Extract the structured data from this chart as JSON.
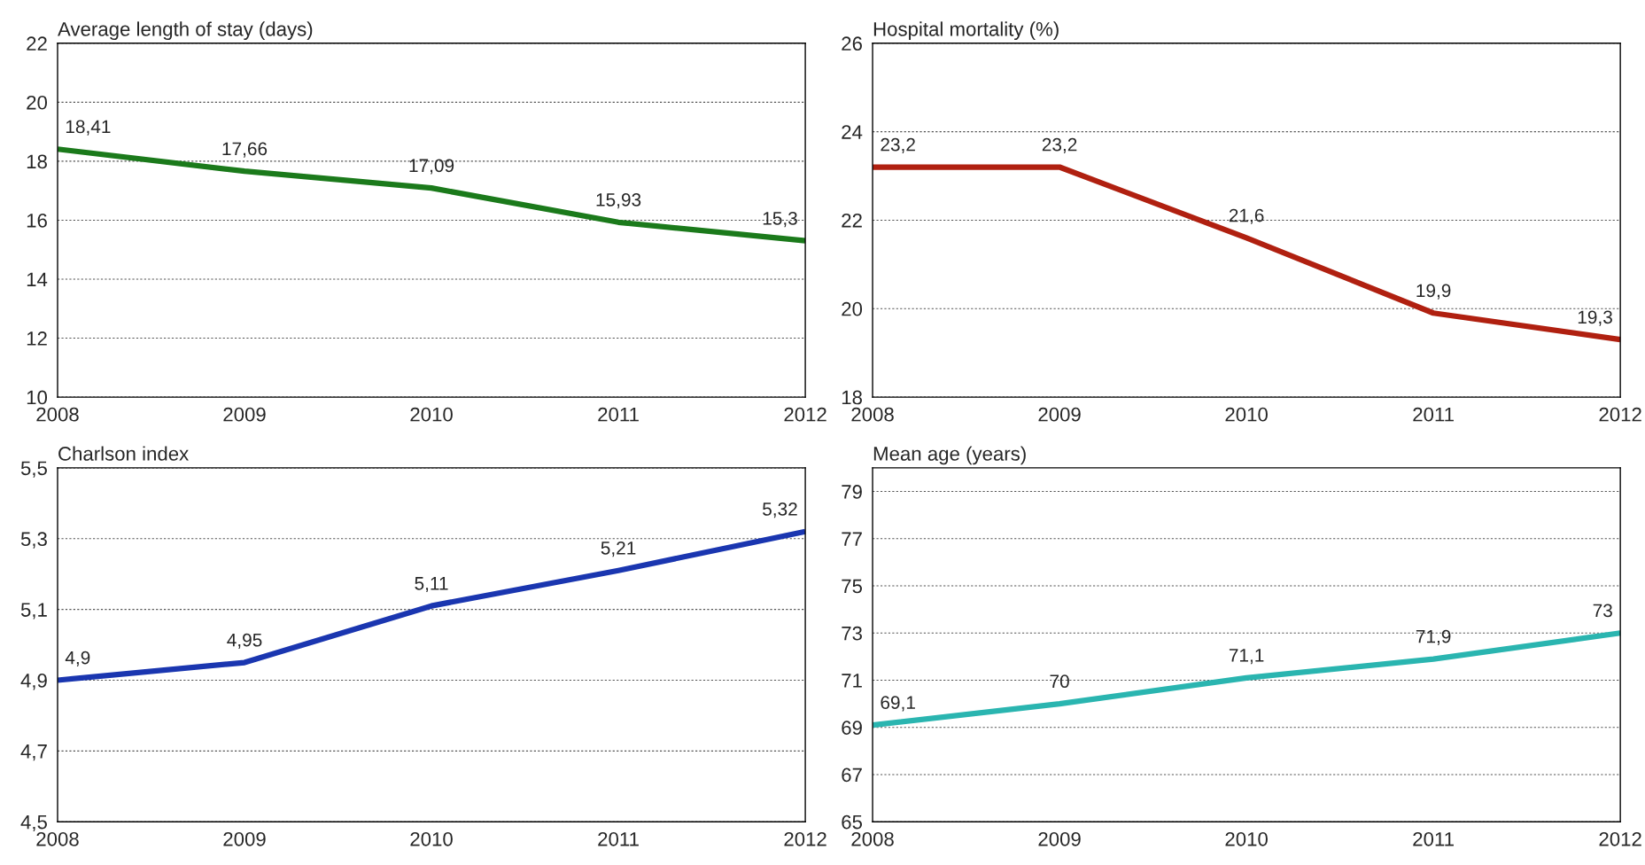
{
  "chart_data": [
    {
      "type": "line",
      "title": "Average length of stay (days)",
      "x": [
        2008,
        2009,
        2010,
        2011,
        2012
      ],
      "xlim": [
        2008,
        2012
      ],
      "xticks": [
        2008,
        2009,
        2010,
        2011,
        2012
      ],
      "ylim": [
        10,
        22
      ],
      "yticks": [
        10,
        12,
        14,
        16,
        18,
        20,
        22
      ],
      "grid": "y",
      "line_style": "solid",
      "series": [
        {
          "color": "#1b7a1b",
          "values": [
            18.41,
            17.66,
            17.09,
            15.93,
            15.3
          ],
          "value_labels": [
            "18,41",
            "17,66",
            "17,09",
            "15,93",
            "15,3"
          ]
        }
      ]
    },
    {
      "type": "line",
      "title": "Hospital mortality (%)",
      "x": [
        2008,
        2009,
        2010,
        2011,
        2012
      ],
      "xlim": [
        2008,
        2012
      ],
      "xticks": [
        2008,
        2009,
        2010,
        2011,
        2012
      ],
      "ylim": [
        18,
        26
      ],
      "yticks": [
        18,
        20,
        22,
        24,
        26
      ],
      "grid": "y",
      "line_style": "solid",
      "series": [
        {
          "color": "#b02010",
          "values": [
            23.2,
            23.2,
            21.6,
            19.9,
            19.3
          ],
          "value_labels": [
            "23,2",
            "23,2",
            "21,6",
            "19,9",
            "19,3"
          ]
        }
      ]
    },
    {
      "type": "line",
      "title": "Charlson index",
      "x": [
        2008,
        2009,
        2010,
        2011,
        2012
      ],
      "xlim": [
        2008,
        2012
      ],
      "xticks": [
        2008,
        2009,
        2010,
        2011,
        2012
      ],
      "ylim": [
        4.5,
        5.5
      ],
      "yticks": [
        {
          "value": 4.5,
          "label": "4,5"
        },
        {
          "value": 4.7,
          "label": "4,7"
        },
        {
          "value": 4.9,
          "label": "4,9"
        },
        {
          "value": 5.1,
          "label": "5,1"
        },
        {
          "value": 5.3,
          "label": "5,3"
        },
        {
          "value": 5.5,
          "label": "5,5"
        }
      ],
      "grid": "y",
      "line_style": "solid",
      "series": [
        {
          "color": "#1a36b0",
          "values": [
            4.9,
            4.95,
            5.11,
            5.21,
            5.32
          ],
          "value_labels": [
            "4,9",
            "4,95",
            "5,11",
            "5,21",
            "5,32"
          ]
        }
      ]
    },
    {
      "type": "line",
      "title": "Mean age (years)",
      "x": [
        2008,
        2009,
        2010,
        2011,
        2012
      ],
      "xlim": [
        2008,
        2012
      ],
      "xticks": [
        2008,
        2009,
        2010,
        2011,
        2012
      ],
      "ylim": [
        65,
        80
      ],
      "yticks": [
        65,
        67,
        69,
        71,
        73,
        75,
        77,
        79
      ],
      "grid": "y",
      "line_style": "solid",
      "series": [
        {
          "color": "#2ab5b0",
          "values": [
            69.1,
            70,
            71.1,
            71.9,
            73
          ],
          "value_labels": [
            "69,1",
            "70",
            "71,1",
            "71,9",
            "73"
          ]
        }
      ]
    }
  ]
}
